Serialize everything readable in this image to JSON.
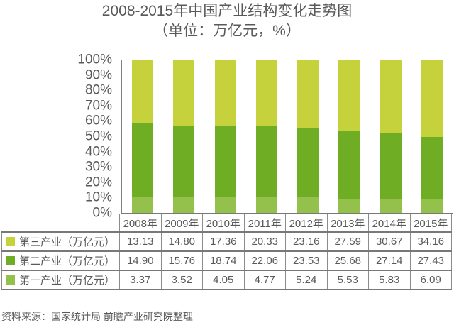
{
  "title": "2008-2015年中国产业结构变化走势图",
  "subtitle": "（单位：万亿元，%）",
  "source": "资料来源：国家统计局 前瞻产业研究院整理",
  "colors": {
    "tertiary": "#c6d23c",
    "secondary": "#6fad24",
    "primary": "#94c04c",
    "text": "#595959",
    "axis": "#808080",
    "table_border": "#787878"
  },
  "chart_data": {
    "type": "bar",
    "stacked": true,
    "normalized_to_100_percent": true,
    "title": "2008-2015年中国产业结构变化走势图",
    "subtitle": "（单位：万亿元，%）",
    "categories": [
      "2008年",
      "2009年",
      "2010年",
      "2011年",
      "2012年",
      "2013年",
      "2014年",
      "2015年"
    ],
    "series": [
      {
        "name": "第三产业（万亿元）",
        "stack_position": "top",
        "color": "#c6d23c",
        "values": [
          13.13,
          14.8,
          17.36,
          20.33,
          23.16,
          27.59,
          30.67,
          34.16
        ]
      },
      {
        "name": "第二产业（万亿元）",
        "stack_position": "middle",
        "color": "#6fad24",
        "values": [
          14.9,
          15.76,
          18.74,
          22.06,
          23.53,
          25.68,
          27.14,
          27.43
        ]
      },
      {
        "name": "第一产业（万亿元）",
        "stack_position": "bottom",
        "color": "#94c04c",
        "values": [
          3.37,
          3.52,
          4.05,
          4.77,
          5.24,
          5.53,
          5.83,
          6.09
        ]
      }
    ],
    "yticks": [
      "100%",
      "90%",
      "80%",
      "70%",
      "60%",
      "50%",
      "40%",
      "30%",
      "20%",
      "10%",
      "0%"
    ],
    "ylim": [
      0,
      100
    ],
    "xlabel": "",
    "ylabel": "",
    "grid": false,
    "legend_position": "table-left"
  }
}
